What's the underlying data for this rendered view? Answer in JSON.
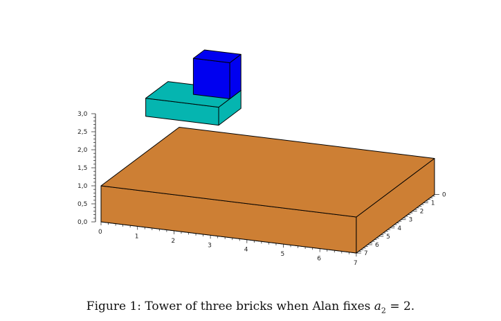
{
  "caption": {
    "label": "Figure 1:",
    "text_before": "Tower of three bricks when Alan fixes ",
    "var": "a",
    "sub": "2",
    "text_after": " = 2."
  },
  "chart_data": {
    "type": "3d-boxes",
    "axes": {
      "x": {
        "ticks": [
          "0",
          "1",
          "2",
          "3",
          "4",
          "5",
          "6",
          "7"
        ],
        "range": [
          0,
          7
        ]
      },
      "y": {
        "ticks": [
          "0",
          "1",
          "2",
          "3",
          "4",
          "5",
          "6",
          "7"
        ],
        "range": [
          0,
          7
        ]
      },
      "z": {
        "ticks": [
          "0,0",
          "0,5",
          "1,0",
          "1,5",
          "2,0",
          "2,5",
          "3,0"
        ],
        "range": [
          0,
          3
        ]
      }
    },
    "bricks": [
      {
        "name": "base",
        "color": "#cd7f34",
        "x": [
          0,
          7
        ],
        "y": [
          0,
          7
        ],
        "z": [
          0,
          1
        ]
      },
      {
        "name": "middle",
        "color": "#05b5b0",
        "x": [
          0,
          2
        ],
        "y": [
          4,
          6
        ],
        "z": [
          2,
          2.5
        ]
      },
      {
        "name": "top",
        "color": "#0000f0",
        "x": [
          1,
          2
        ],
        "y": [
          5,
          6
        ],
        "z": [
          2.5,
          3.5
        ]
      }
    ]
  }
}
